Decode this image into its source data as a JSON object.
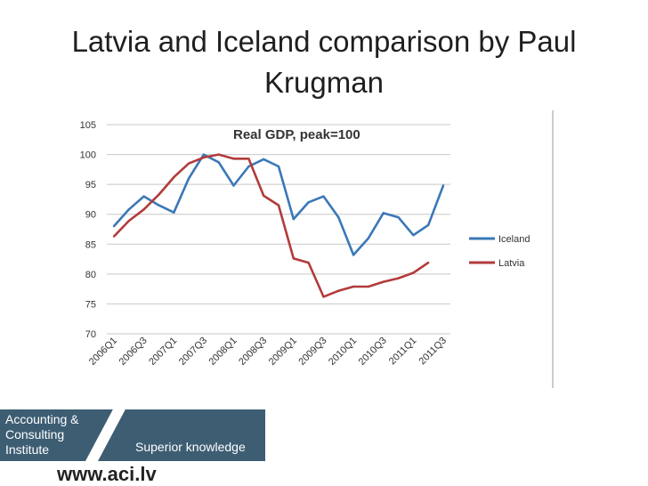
{
  "slide": {
    "title": "Latvia and Iceland comparison by Paul Krugman"
  },
  "chart_data": {
    "type": "line",
    "title": "Real GDP, peak=100",
    "xlabel": "",
    "ylabel": "",
    "ylim": [
      70,
      105
    ],
    "yticks": [
      70,
      75,
      80,
      85,
      90,
      95,
      100,
      105
    ],
    "x": [
      "2006Q1",
      "2006Q2",
      "2006Q3",
      "2006Q4",
      "2007Q1",
      "2007Q2",
      "2007Q3",
      "2007Q4",
      "2008Q1",
      "2008Q2",
      "2008Q3",
      "2008Q4",
      "2009Q1",
      "2009Q2",
      "2009Q3",
      "2009Q4",
      "2010Q1",
      "2010Q2",
      "2010Q3",
      "2010Q4",
      "2011Q1",
      "2011Q2",
      "2011Q3"
    ],
    "xtick_labels": [
      "2006Q1",
      "2006Q3",
      "2007Q1",
      "2007Q3",
      "2008Q1",
      "2008Q3",
      "2009Q1",
      "2009Q3",
      "2010Q1",
      "2010Q3",
      "2011Q1",
      "2011Q3"
    ],
    "grid": true,
    "legend_position": "right",
    "series": [
      {
        "name": "Iceland",
        "color": "#3a78b8",
        "values": [
          88,
          90.8,
          93,
          91.5,
          90.3,
          96,
          100,
          98.7,
          94.8,
          98,
          99.2,
          98,
          89.2,
          92,
          93,
          89.5,
          83.2,
          86,
          90.2,
          89.5,
          86.5,
          88.2,
          94.8
        ]
      },
      {
        "name": "Latvia",
        "color": "#b23b3b",
        "values": [
          86.3,
          88.9,
          90.8,
          93.3,
          96.2,
          98.5,
          99.5,
          100,
          99.3,
          99.3,
          93.1,
          91.5,
          82.6,
          81.9,
          76.2,
          77.2,
          77.9,
          77.9,
          78.7,
          79.3,
          80.2,
          81.9,
          null
        ]
      }
    ]
  },
  "logo": {
    "company": "Accounting &\nConsulting\nInstitute",
    "tagline": "Superior knowledge",
    "website": "www.aci.lv"
  }
}
